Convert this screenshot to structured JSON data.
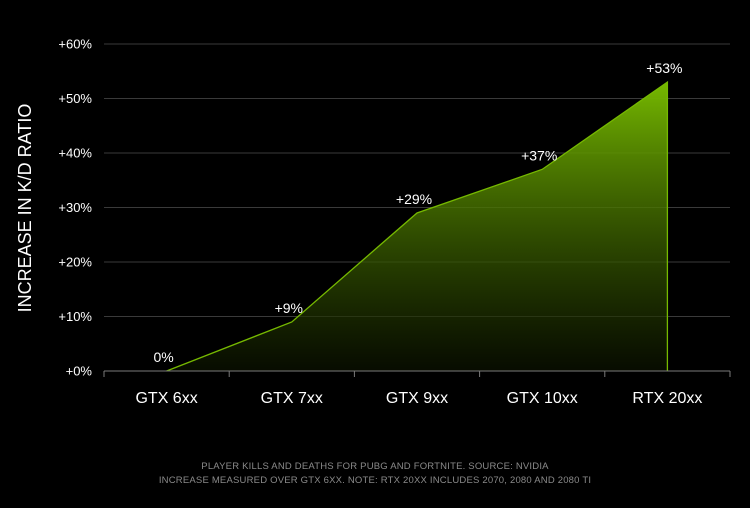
{
  "chart_data": {
    "type": "area",
    "categories": [
      "GTX 6xx",
      "GTX 7xx",
      "GTX 9xx",
      "GTX 10xx",
      "RTX 20xx"
    ],
    "values": [
      0,
      9,
      29,
      37,
      53
    ],
    "data_labels": [
      "0%",
      "+9%",
      "+29%",
      "+37%",
      "+53%"
    ],
    "ylabel": "INCREASE IN K/D RATIO",
    "xlabel": "",
    "ylim": [
      0,
      60
    ],
    "yticks": [
      0,
      10,
      20,
      30,
      40,
      50,
      60
    ],
    "ytick_labels": [
      "+0%",
      "+10%",
      "+20%",
      "+30%",
      "+40%",
      "+50%",
      "+60%"
    ],
    "grid": true,
    "colors": {
      "line": "#76b900",
      "fill_top": "#76b900",
      "grid": "#3a3a3a",
      "text": "#ffffff"
    }
  },
  "footnotes": {
    "line1": "PLAYER KILLS AND DEATHS FOR PUBG AND FORTNITE. SOURCE: NVIDIA",
    "line2": "INCREASE MEASURED OVER GTX 6XX. NOTE: RTX 20XX INCLUDES 2070, 2080 AND 2080 TI"
  }
}
